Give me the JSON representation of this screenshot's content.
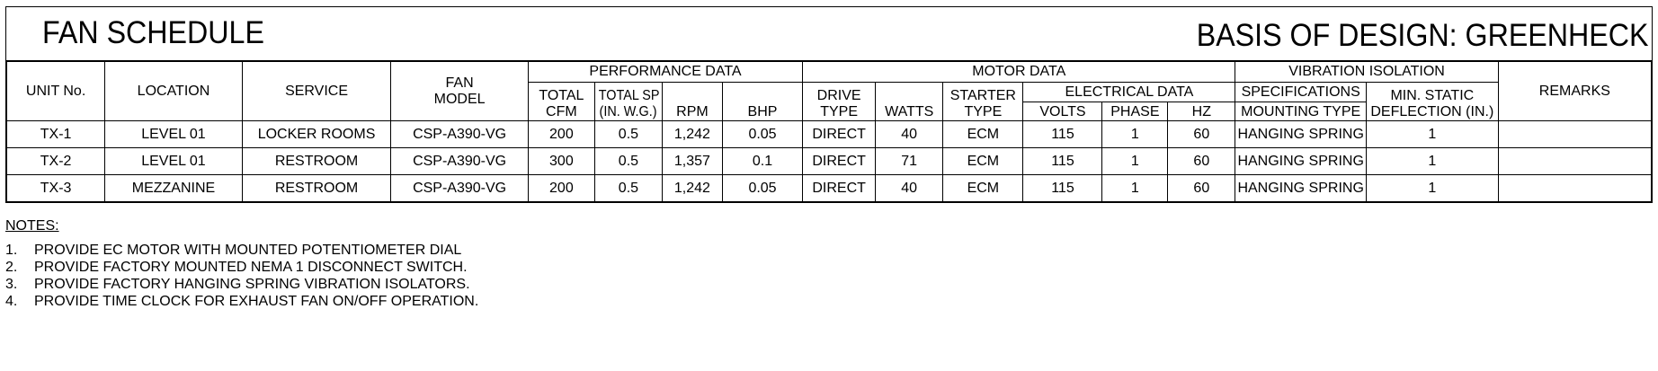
{
  "title": "FAN SCHEDULE",
  "basis": "BASIS OF DESIGN: GREENHECK",
  "groups": {
    "performance": "PERFORMANCE DATA",
    "motor": "MOTOR DATA",
    "electrical": "ELECTRICAL DATA",
    "vibration": "VIBRATION ISOLATION"
  },
  "headers": {
    "unit_no": "UNIT No.",
    "location": "LOCATION",
    "service": "SERVICE",
    "fan_model_1": "FAN",
    "fan_model_2": "MODEL",
    "total_cfm_1": "TOTAL",
    "total_cfm_2": "CFM",
    "total_sp_1": "TOTAL SP",
    "total_sp_2": "(IN. W.G.)",
    "rpm": "RPM",
    "bhp": "BHP",
    "drive_1": "DRIVE",
    "drive_2": "TYPE",
    "watts": "WATTS",
    "starter_1": "STARTER",
    "starter_2": "TYPE",
    "volts": "VOLTS",
    "phase": "PHASE",
    "hz": "HZ",
    "spec_1": "SPECIFICATIONS",
    "spec_2": "MOUNTING TYPE",
    "deflection_1": "MIN. STATIC",
    "deflection_2": "DEFLECTION (IN.)",
    "remarks": "REMARKS"
  },
  "rows": [
    {
      "unit": "TX-1",
      "location": "LEVEL 01",
      "service": "LOCKER ROOMS",
      "model": "CSP-A390-VG",
      "cfm": "200",
      "sp": "0.5",
      "rpm": "1,242",
      "bhp": "0.05",
      "drive": "DIRECT",
      "watts": "40",
      "starter": "ECM",
      "volts": "115",
      "phase": "1",
      "hz": "60",
      "mounting": "HANGING SPRING",
      "deflection": "1",
      "remarks": ""
    },
    {
      "unit": "TX-2",
      "location": "LEVEL 01",
      "service": "RESTROOM",
      "model": "CSP-A390-VG",
      "cfm": "300",
      "sp": "0.5",
      "rpm": "1,357",
      "bhp": "0.1",
      "drive": "DIRECT",
      "watts": "71",
      "starter": "ECM",
      "volts": "115",
      "phase": "1",
      "hz": "60",
      "mounting": "HANGING SPRING",
      "deflection": "1",
      "remarks": ""
    },
    {
      "unit": "TX-3",
      "location": "MEZZANINE",
      "service": "RESTROOM",
      "model": "CSP-A390-VG",
      "cfm": "200",
      "sp": "0.5",
      "rpm": "1,242",
      "bhp": "0.05",
      "drive": "DIRECT",
      "watts": "40",
      "starter": "ECM",
      "volts": "115",
      "phase": "1",
      "hz": "60",
      "mounting": "HANGING SPRING",
      "deflection": "1",
      "remarks": ""
    }
  ],
  "notes": {
    "title": "NOTES:",
    "items": [
      {
        "num": "1.",
        "text": "PROVIDE EC MOTOR WITH MOUNTED POTENTIOMETER DIAL"
      },
      {
        "num": "2.",
        "text": "PROVIDE FACTORY MOUNTED NEMA 1 DISCONNECT SWITCH."
      },
      {
        "num": "3.",
        "text": "PROVIDE FACTORY HANGING SPRING VIBRATION ISOLATORS."
      },
      {
        "num": "4.",
        "text": "PROVIDE TIME CLOCK FOR EXHAUST FAN ON/OFF OPERATION."
      }
    ]
  }
}
